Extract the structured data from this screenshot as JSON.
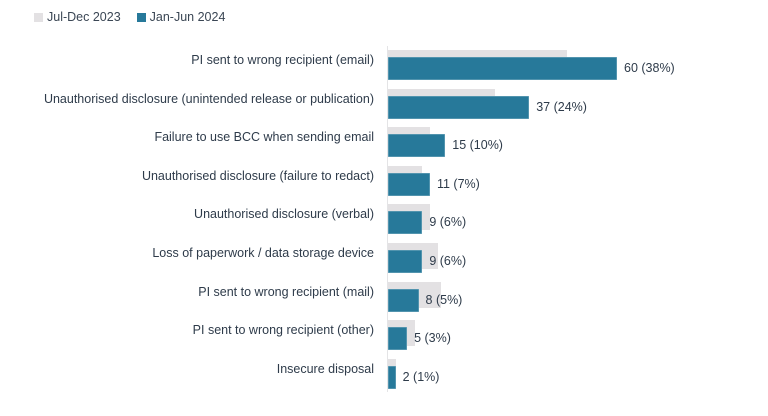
{
  "legend": [
    {
      "label": "Jul-Dec 2023",
      "color": "#e3e1e3"
    },
    {
      "label": "Jan-Jun 2024",
      "color": "#27799a"
    }
  ],
  "colors": {
    "previous": "#e3e1e3",
    "current": "#27799a",
    "text": "#2e3b4a",
    "axis": "#e4e4e6"
  },
  "chart_data": {
    "type": "bar",
    "orientation": "horizontal",
    "title": "",
    "xlabel": "",
    "ylabel": "",
    "categories": [
      "PI sent to wrong recipient (email)",
      "Unauthorised disclosure (unintended release or publication)",
      "Failure to use BCC when sending email",
      "Unauthorised disclosure (failure to redact)",
      "Unauthorised disclosure (verbal)",
      "Loss of paperwork / data storage device",
      "PI sent to wrong recipient (mail)",
      "PI sent to wrong recipient (other)",
      "Insecure disposal"
    ],
    "series": [
      {
        "name": "Jul-Dec 2023",
        "values": [
          47,
          28,
          11,
          9,
          11,
          13,
          14,
          7,
          2
        ]
      },
      {
        "name": "Jan-Jun 2024",
        "values": [
          60,
          37,
          15,
          11,
          9,
          9,
          8,
          5,
          2
        ]
      }
    ],
    "data_labels": [
      "60 (38%)",
      "37 (24%)",
      "15 (10%)",
      "11 (7%)",
      "9 (6%)",
      "9 (6%)",
      "8 (5%)",
      "5 (3%)",
      "2 (1%)"
    ],
    "legend_position": "top-left",
    "grid": false,
    "xlim": [
      0,
      60
    ]
  }
}
